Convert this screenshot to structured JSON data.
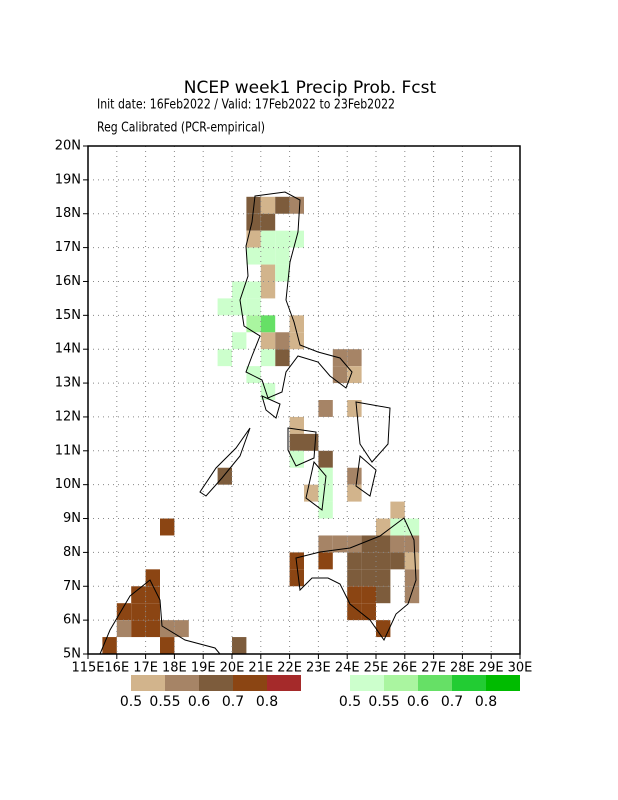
{
  "map": {
    "title": "NCEP week1 Precip Prob. Fcst",
    "subtitle": "Init date: 16Feb2022 / Valid: 17Feb2022 to 23Feb2022",
    "note": "Reg Calibrated (PCR-empirical)",
    "xlim": [
      115,
      130
    ],
    "ylim": [
      5,
      20
    ],
    "xticks": [
      {
        "value": 115,
        "label": "115E"
      },
      {
        "value": 116,
        "label": "16E"
      },
      {
        "value": 117,
        "label": "17E"
      },
      {
        "value": 118,
        "label": "18E"
      },
      {
        "value": 119,
        "label": "19E"
      },
      {
        "value": 120,
        "label": "20E"
      },
      {
        "value": 121,
        "label": "21E"
      },
      {
        "value": 122,
        "label": "22E"
      },
      {
        "value": 123,
        "label": "23E"
      },
      {
        "value": 124,
        "label": "24E"
      },
      {
        "value": 125,
        "label": "25E"
      },
      {
        "value": 126,
        "label": "26E"
      },
      {
        "value": 127,
        "label": "27E"
      },
      {
        "value": 128,
        "label": "28E"
      },
      {
        "value": 129,
        "label": "29E"
      },
      {
        "value": 130,
        "label": "30E"
      }
    ],
    "yticks": [
      {
        "value": 5,
        "label": "5N"
      },
      {
        "value": 6,
        "label": "6N"
      },
      {
        "value": 7,
        "label": "7N"
      },
      {
        "value": 8,
        "label": "8N"
      },
      {
        "value": 9,
        "label": "9N"
      },
      {
        "value": 10,
        "label": "10N"
      },
      {
        "value": 11,
        "label": "11N"
      },
      {
        "value": 12,
        "label": "12N"
      },
      {
        "value": 13,
        "label": "13N"
      },
      {
        "value": 14,
        "label": "14N"
      },
      {
        "value": 15,
        "label": "15N"
      },
      {
        "value": 16,
        "label": "16N"
      },
      {
        "value": 17,
        "label": "17N"
      },
      {
        "value": 18,
        "label": "18N"
      },
      {
        "value": 19,
        "label": "19N"
      },
      {
        "value": 20,
        "label": "20N"
      }
    ],
    "grid": true,
    "colorbars": [
      {
        "levels": [
          0.5,
          0.55,
          0.6,
          0.7,
          0.8
        ],
        "colors": [
          "#d2b48c",
          "#a68466",
          "#7d5c3c",
          "#8b4513",
          "#a52a2a"
        ]
      },
      {
        "levels": [
          0.5,
          0.55,
          0.6,
          0.7,
          0.8
        ],
        "colors": [
          "#ccffcc",
          "#aaf5a0",
          "#66e066",
          "#22cc33",
          "#00bb00"
        ]
      }
    ],
    "brown_cells": [
      [
        120.5,
        18,
        0.6
      ],
      [
        121,
        18,
        0.5
      ],
      [
        121.5,
        18,
        0.6
      ],
      [
        122,
        18,
        0.55
      ],
      [
        120.5,
        17.5,
        0.6
      ],
      [
        121,
        17.5,
        0.6
      ],
      [
        120.5,
        17,
        0.5
      ],
      [
        121,
        16,
        0.5
      ],
      [
        121,
        15.5,
        0.5
      ],
      [
        122,
        14.5,
        0.5
      ],
      [
        121,
        14,
        0.5
      ],
      [
        121.5,
        14,
        0.55
      ],
      [
        122,
        14,
        0.5
      ],
      [
        121.5,
        13.5,
        0.6
      ],
      [
        123.5,
        13.5,
        0.55
      ],
      [
        124,
        13.5,
        0.55
      ],
      [
        123.5,
        13,
        0.55
      ],
      [
        124,
        13,
        0.5
      ],
      [
        123,
        12,
        0.55
      ],
      [
        124,
        12,
        0.5
      ],
      [
        122,
        11.5,
        0.5
      ],
      [
        122,
        11,
        0.6
      ],
      [
        122.5,
        11,
        0.6
      ],
      [
        123,
        10.5,
        0.6
      ],
      [
        124,
        10,
        0.55
      ],
      [
        119.5,
        10,
        0.6
      ],
      [
        122.5,
        9.5,
        0.5
      ],
      [
        124,
        9.5,
        0.5
      ],
      [
        125.5,
        9,
        0.5
      ],
      [
        125,
        8.5,
        0.5
      ],
      [
        123,
        8,
        0.55
      ],
      [
        123.5,
        8,
        0.55
      ],
      [
        124,
        8,
        0.55
      ],
      [
        124.5,
        8,
        0.6
      ],
      [
        125,
        8,
        0.6
      ],
      [
        125.5,
        8,
        0.55
      ],
      [
        126,
        8,
        0.55
      ],
      [
        122,
        7.5,
        0.7
      ],
      [
        123,
        7.5,
        0.7
      ],
      [
        124,
        7.5,
        0.6
      ],
      [
        124.5,
        7.5,
        0.6
      ],
      [
        125,
        7.5,
        0.6
      ],
      [
        125.5,
        7.5,
        0.6
      ],
      [
        126,
        7.5,
        0.5
      ],
      [
        122,
        7,
        0.7
      ],
      [
        124,
        7,
        0.6
      ],
      [
        124.5,
        7,
        0.6
      ],
      [
        125,
        7,
        0.6
      ],
      [
        126,
        7,
        0.55
      ],
      [
        124,
        6.5,
        0.7
      ],
      [
        124.5,
        6.5,
        0.7
      ],
      [
        125,
        6.5,
        0.6
      ],
      [
        126,
        6.5,
        0.55
      ],
      [
        124,
        6,
        0.7
      ],
      [
        124.5,
        6,
        0.7
      ],
      [
        125,
        5.5,
        0.7
      ],
      [
        117.5,
        8.5,
        0.7
      ],
      [
        117,
        7,
        0.7
      ],
      [
        116.5,
        6.5,
        0.7
      ],
      [
        117,
        6.5,
        0.7
      ],
      [
        116,
        6,
        0.7
      ],
      [
        116.5,
        6,
        0.7
      ],
      [
        117,
        6,
        0.7
      ],
      [
        116,
        5.5,
        0.55
      ],
      [
        116.5,
        5.5,
        0.7
      ],
      [
        117,
        5.5,
        0.7
      ],
      [
        117.5,
        5.5,
        0.55
      ],
      [
        118,
        5.5,
        0.55
      ],
      [
        115.5,
        5,
        0.7
      ],
      [
        117.5,
        5,
        0.7
      ],
      [
        120,
        5,
        0.6
      ]
    ],
    "green_cells": [
      [
        121,
        17,
        0.5
      ],
      [
        121.5,
        17,
        0.5
      ],
      [
        122,
        17,
        0.5
      ],
      [
        120.5,
        16.5,
        0.5
      ],
      [
        121,
        16.5,
        0.5
      ],
      [
        121.5,
        16.5,
        0.5
      ],
      [
        121.5,
        16,
        0.5
      ],
      [
        120,
        15.5,
        0.5
      ],
      [
        120.5,
        15.5,
        0.5
      ],
      [
        119.5,
        15,
        0.5
      ],
      [
        120,
        15,
        0.5
      ],
      [
        120.5,
        15,
        0.5
      ],
      [
        120.5,
        14.5,
        0.55
      ],
      [
        121,
        14.5,
        0.6
      ],
      [
        120,
        14,
        0.5
      ],
      [
        119.5,
        13.5,
        0.5
      ],
      [
        121,
        13.5,
        0.5
      ],
      [
        120.5,
        13,
        0.5
      ],
      [
        121,
        12.5,
        0.5
      ],
      [
        122,
        10.5,
        0.5
      ],
      [
        123,
        10,
        0.5
      ],
      [
        123,
        9.5,
        0.5
      ],
      [
        123,
        9,
        0.5
      ],
      [
        125.5,
        8.5,
        0.5
      ],
      [
        126,
        8.5,
        0.5
      ]
    ]
  }
}
